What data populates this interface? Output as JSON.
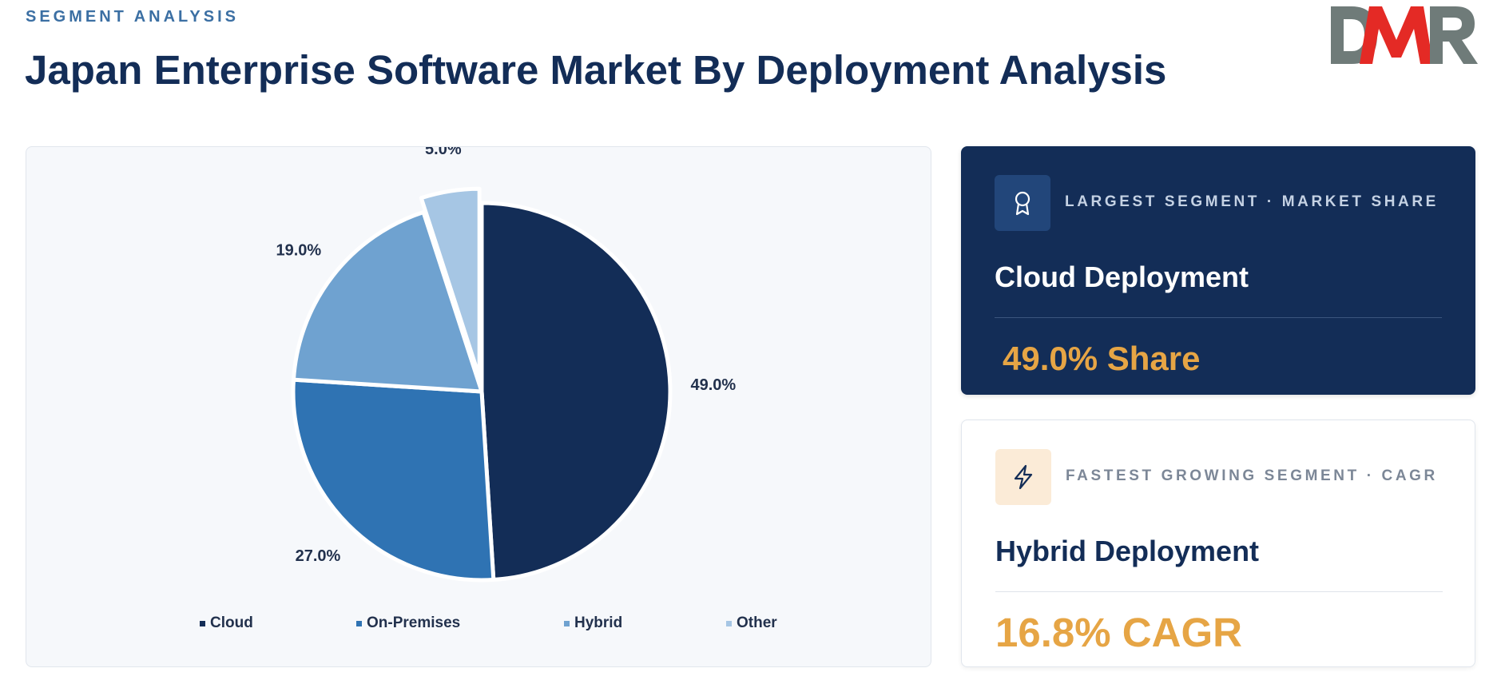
{
  "header": {
    "eyebrow": "SEGMENT ANALYSIS",
    "title": "Japan Enterprise Software Market By Deployment Analysis"
  },
  "logo": {
    "text": "DMR",
    "colors": {
      "gray": "#6f7b79",
      "red": "#e42a25"
    }
  },
  "chart_data": {
    "type": "pie",
    "title": "",
    "categories": [
      "Cloud",
      "On-Premises",
      "Hybrid",
      "Other"
    ],
    "values": [
      49.0,
      27.0,
      19.0,
      5.0
    ],
    "labels": [
      "49.0%",
      "27.0%",
      "19.0%",
      "5.0%"
    ],
    "colors": [
      "#132d57",
      "#2f73b3",
      "#6fa2d0",
      "#a6c6e4"
    ],
    "legend_position": "bottom",
    "exploded": [
      false,
      false,
      false,
      true
    ]
  },
  "cards": {
    "largest": {
      "icon": "award-icon",
      "kicker": "LARGEST SEGMENT  ·  MARKET SHARE",
      "heading": "Cloud Deployment",
      "metric": "49.0% Share"
    },
    "fastest": {
      "icon": "lightning-icon",
      "kicker": "FASTEST GROWING SEGMENT  ·  CAGR",
      "heading": "Hybrid Deployment",
      "metric": "16.8% CAGR"
    }
  },
  "colors": {
    "navy": "#132d57",
    "accent": "#e6a545",
    "eyebrow": "#3b6fa3"
  }
}
